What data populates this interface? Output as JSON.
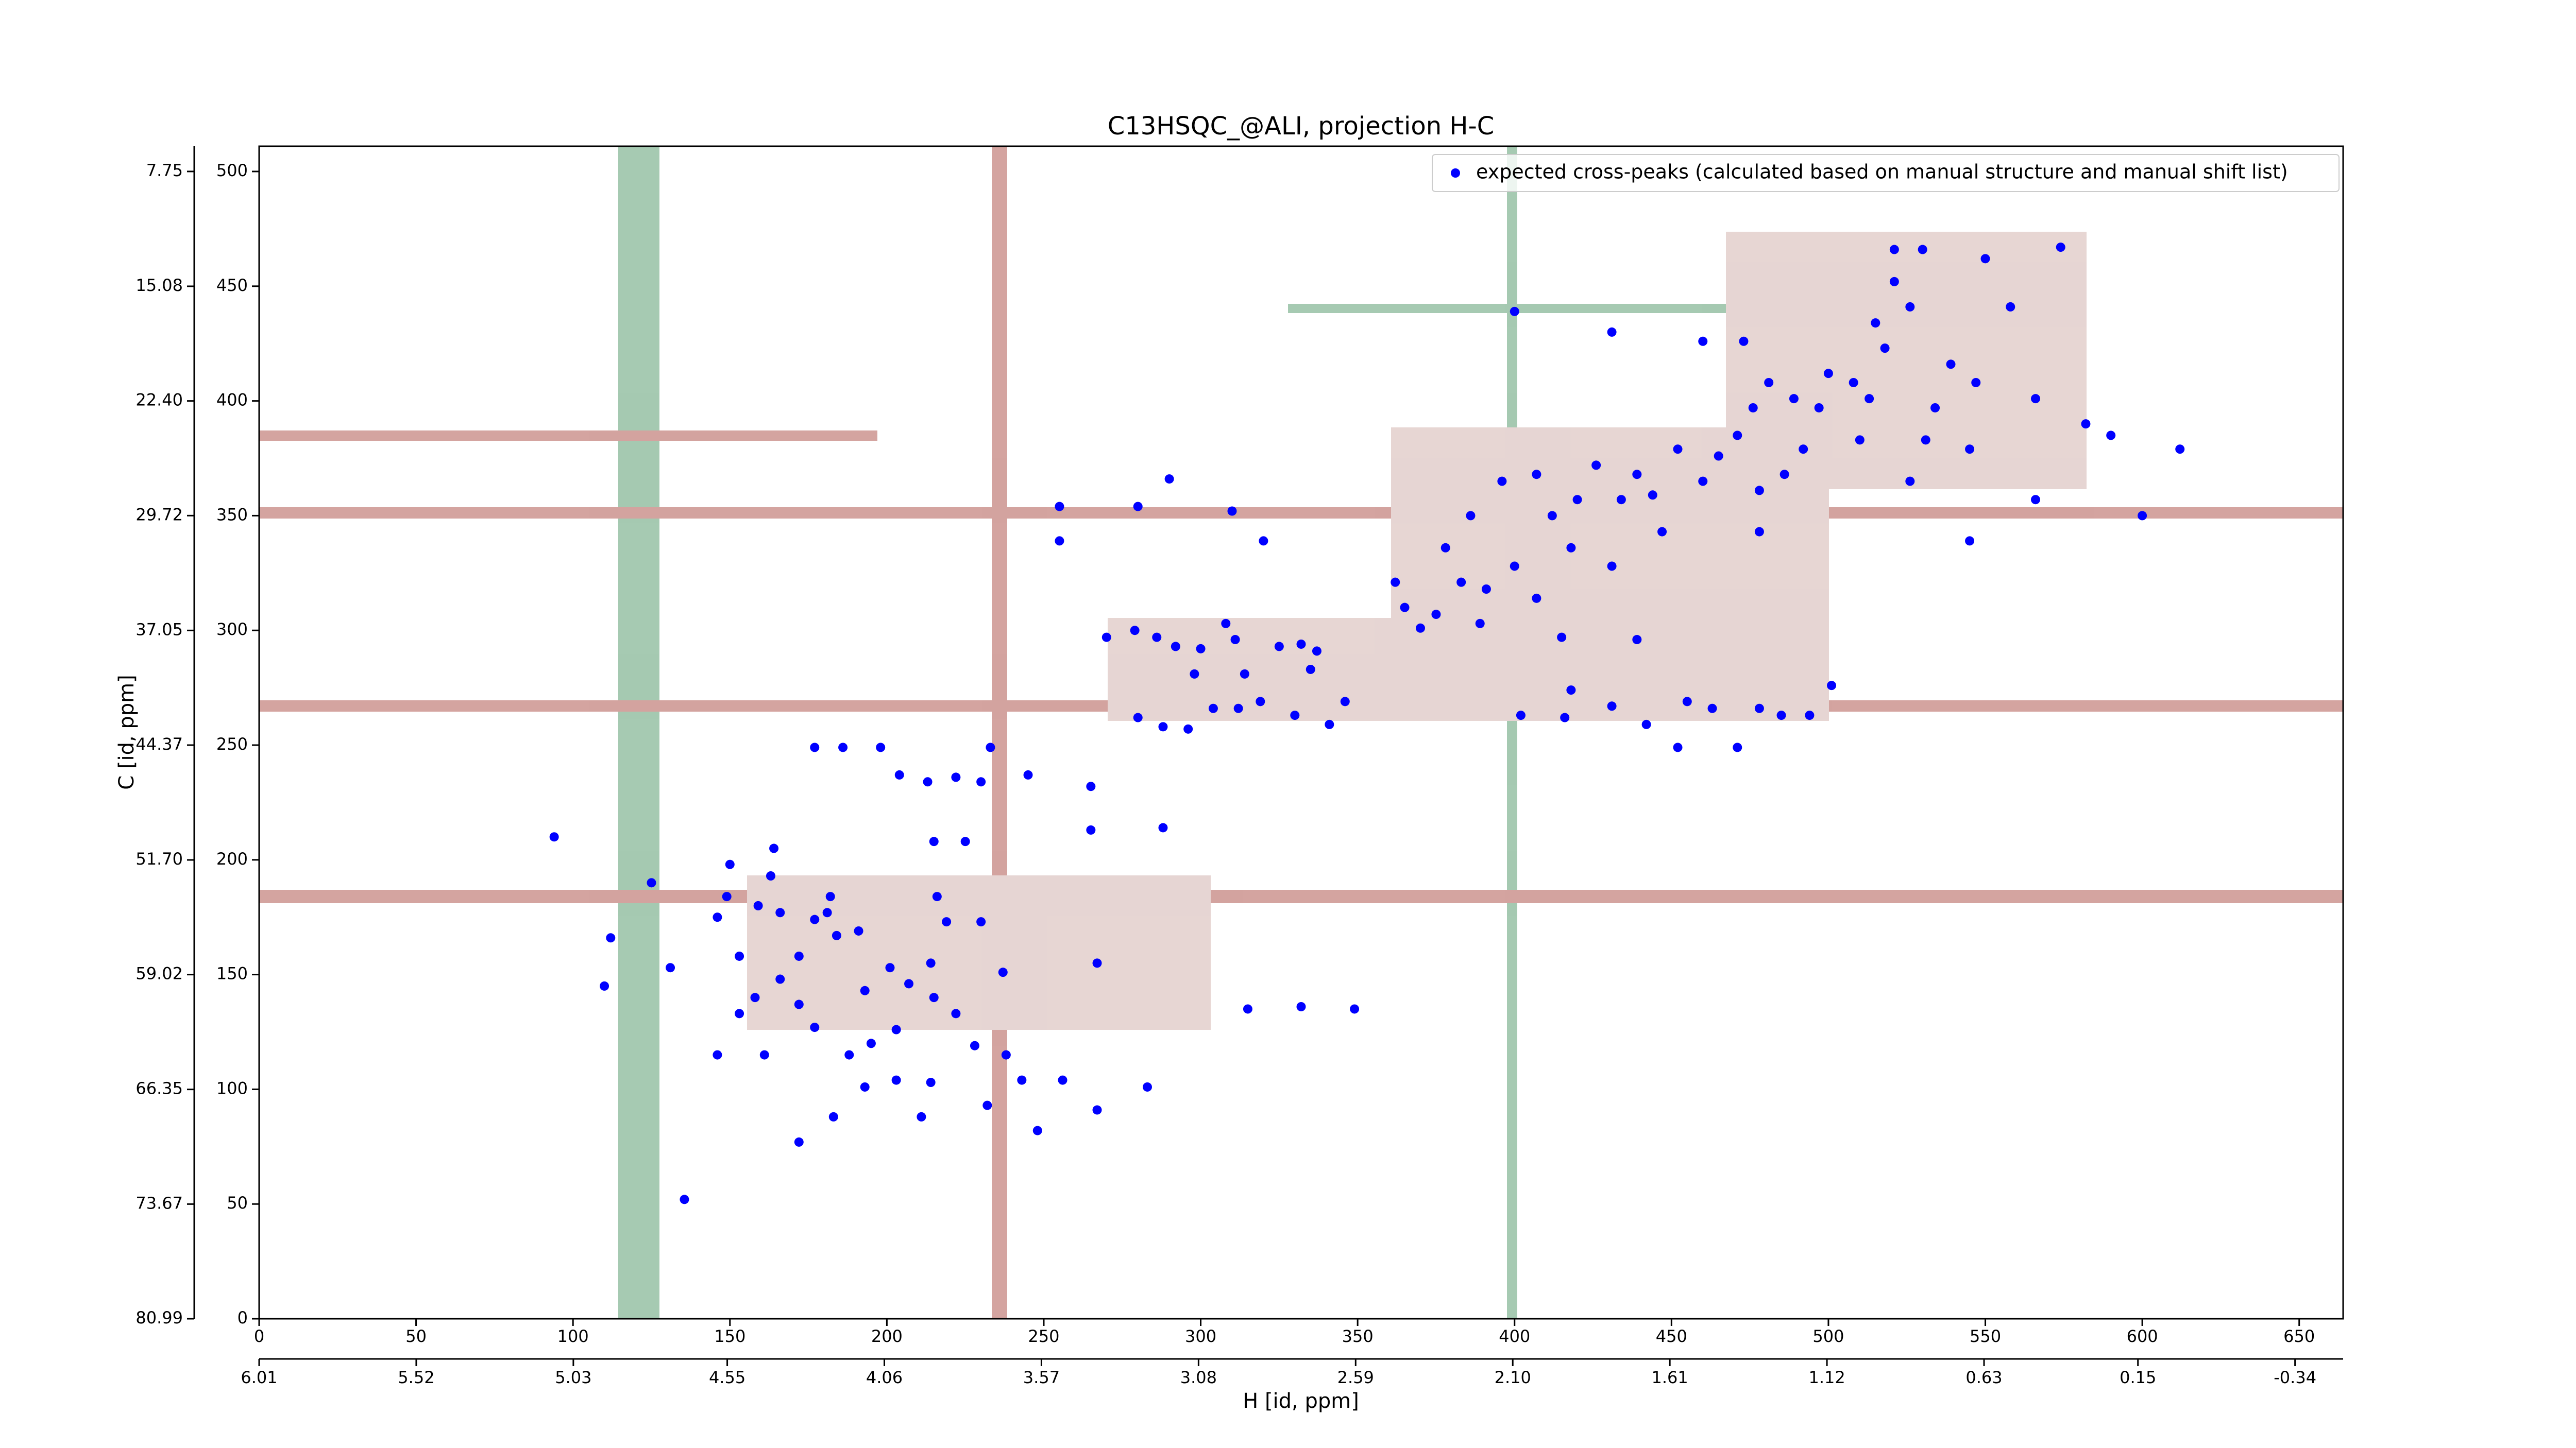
{
  "chart_data": {
    "type": "scatter",
    "title": "C13HSQC_@ALI, projection H-C",
    "x_label": "H [id, ppm]",
    "y_label": "C [id, ppm]",
    "xlim": [
      0,
      664
    ],
    "xticks": [
      0,
      50,
      100,
      150,
      200,
      250,
      300,
      350,
      400,
      450,
      500,
      550,
      600,
      650
    ],
    "ylim": [
      0,
      511
    ],
    "yticks": [
      0,
      50,
      100,
      150,
      200,
      250,
      300,
      350,
      400,
      450,
      500
    ],
    "x2lim": [
      6.01,
      -0.49
    ],
    "x2ticks": [
      6.01,
      5.52,
      5.03,
      4.55,
      4.06,
      3.57,
      3.08,
      2.59,
      {
        "value": 2.1,
        "label": "2.10"
      },
      1.61,
      1.12,
      0.63,
      0.15,
      -0.34
    ],
    "y2lim": [
      80.99,
      6.14
    ],
    "y2ticks": [
      80.99,
      73.67,
      66.35,
      59.02,
      {
        "value": 51.7,
        "label": "51.70"
      },
      44.37,
      37.05,
      29.72,
      {
        "value": 22.4,
        "label": "22.40"
      },
      15.08,
      7.75
    ],
    "legend": "upper right",
    "series": [
      {
        "name": "expected cross-peaks (calculated based on manual structure and manual shift list)",
        "color": "#0000ff",
        "x": [
          135.5,
          110,
          112,
          125,
          131,
          149,
          146,
          153,
          164,
          163,
          159,
          166,
          177,
          181,
          184,
          191,
          172,
          166,
          158,
          153,
          146,
          161,
          172,
          177,
          188,
          195,
          203,
          193,
          201,
          207,
          214,
          219,
          230,
          215,
          222,
          228,
          238,
          243,
          203,
          214,
          193,
          183,
          172,
          211,
          232,
          248,
          267,
          256,
          283,
          267,
          315,
          332,
          349,
          237,
          216,
          182,
          150,
          177,
          186,
          198,
          204,
          213,
          222,
          230,
          245,
          265,
          233,
          215,
          225,
          265,
          288,
          94,
          280,
          288,
          296,
          304,
          312,
          319,
          330,
          341,
          346,
          270,
          279,
          286,
          292,
          300,
          308,
          311,
          325,
          332,
          337,
          298,
          314,
          335,
          320,
          255,
          255,
          280,
          310,
          290,
          362,
          365,
          370,
          375,
          378,
          383,
          386,
          391,
          396,
          400,
          407,
          412,
          418,
          420,
          426,
          431,
          434,
          439,
          444,
          447,
          452,
          460,
          465,
          471,
          478,
          486,
          492,
          478,
          407,
          389,
          415,
          439,
          402,
          418,
          431,
          442,
          452,
          455,
          463,
          471,
          478,
          485,
          494,
          501,
          416,
          460,
          473,
          476,
          481,
          489,
          497,
          500,
          508,
          513,
          518,
          521,
          521,
          526,
          530,
          534,
          539,
          545,
          550,
          547,
          558,
          566,
          574,
          582,
          590,
          612,
          600,
          566,
          545,
          526,
          510,
          515,
          431,
          400,
          531
        ],
        "y": [
          52,
          145,
          166,
          190,
          153,
          184,
          175,
          158,
          205,
          193,
          180,
          177,
          174,
          177,
          167,
          169,
          158,
          148,
          140,
          133,
          115,
          115,
          137,
          127,
          115,
          120,
          126,
          143,
          153,
          146,
          155,
          173,
          173,
          140,
          133,
          119,
          115,
          104,
          104,
          103,
          101,
          88,
          77,
          88,
          93,
          82,
          91,
          104,
          101,
          155,
          135,
          136,
          135,
          151,
          184,
          184,
          198,
          249,
          249,
          249,
          237,
          234,
          236,
          234,
          237,
          232,
          249,
          208,
          208,
          213,
          214,
          210,
          262,
          258,
          257,
          266,
          266,
          269,
          263,
          259,
          269,
          297,
          300,
          297,
          293,
          292,
          303,
          296,
          293,
          294,
          291,
          281,
          281,
          283,
          339,
          339,
          354,
          354,
          352,
          366,
          321,
          310,
          301,
          307,
          336,
          321,
          350,
          318,
          365,
          328,
          368,
          350,
          336,
          357,
          372,
          328,
          357,
          368,
          359,
          343,
          379,
          365,
          376,
          385,
          361,
          368,
          379,
          343,
          314,
          303,
          297,
          296,
          263,
          274,
          267,
          259,
          249,
          269,
          266,
          249,
          266,
          263,
          263,
          276,
          262,
          426,
          426,
          397,
          408,
          401,
          397,
          412,
          408,
          401,
          423,
          452,
          466,
          441,
          466,
          397,
          416,
          379,
          462,
          408,
          441,
          401,
          467,
          390,
          385,
          379,
          350,
          357,
          339,
          365,
          383,
          434,
          430,
          439,
          383
        ]
      }
    ]
  }
}
